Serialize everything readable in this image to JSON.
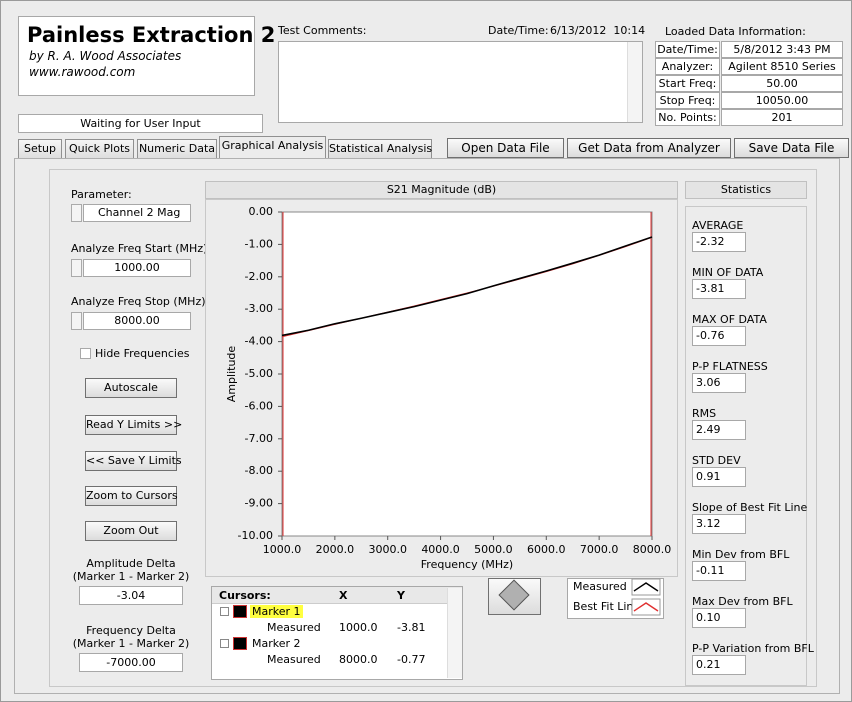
{
  "header": {
    "title": "Painless Extraction 2",
    "author": "by R. A. Wood Associates",
    "website": "www.rawood.com"
  },
  "status": "Waiting for User Input",
  "comments": {
    "label": "Test Comments:"
  },
  "datetime": {
    "label": "Date/Time:",
    "value": "6/13/2012  10:14"
  },
  "loaded_info": {
    "title": "Loaded Data Information:",
    "rows": [
      [
        "Date/Time:",
        "5/8/2012 3:43 PM"
      ],
      [
        "Analyzer:",
        "Agilent 8510 Series"
      ],
      [
        "Start Freq:",
        "50.00"
      ],
      [
        "Stop Freq:",
        "10050.00"
      ],
      [
        "No. Points:",
        "201"
      ]
    ]
  },
  "tabs": [
    "Setup",
    "Quick Plots",
    "Numeric Data",
    "Graphical Analysis",
    "Statistical Analysis"
  ],
  "buttons": [
    "Open Data File",
    "Get Data from Analyzer",
    "Save Data File"
  ],
  "controls": {
    "parameter": {
      "label": "Parameter:",
      "value": "Channel 2 Mag"
    },
    "freq_start": {
      "label": "Analyze Freq Start (MHz)",
      "value": "1000.00"
    },
    "freq_stop": {
      "label": "Analyze Freq Stop (MHz)",
      "value": "8000.00"
    },
    "hide_frequencies": "Hide Frequencies",
    "buttons": [
      "Autoscale",
      "Read Y Limits >>",
      "<< Save Y Limits",
      "Zoom to Cursors",
      "Zoom Out"
    ],
    "amplitude_delta": {
      "label": "Amplitude Delta",
      "sublabel": "(Marker 1 - Marker 2)",
      "value": "-3.04"
    },
    "frequency_delta": {
      "label": "Frequency Delta",
      "sublabel": "(Marker 1 - Marker 2)",
      "value": "-7000.00"
    }
  },
  "statistics": {
    "title": "Statistics",
    "items": [
      {
        "label": "AVERAGE",
        "value": "-2.32"
      },
      {
        "label": "MIN OF DATA",
        "value": "-3.81"
      },
      {
        "label": "MAX OF DATA",
        "value": "-0.76"
      },
      {
        "label": "P-P FLATNESS",
        "value": "3.06"
      },
      {
        "label": "RMS",
        "value": "2.49"
      },
      {
        "label": "STD DEV",
        "value": "0.91"
      },
      {
        "label": "Slope of Best Fit Line",
        "value": "3.12"
      },
      {
        "label": "Min Dev from BFL",
        "value": "-0.11"
      },
      {
        "label": "Max Dev from BFL",
        "value": "0.10"
      },
      {
        "label": "P-P Variation from BFL",
        "value": "0.21"
      }
    ]
  },
  "cursors": {
    "headers": [
      "Cursors:",
      "X",
      "Y"
    ],
    "rows": [
      {
        "name": "Marker 1",
        "trace": "Measured",
        "x": "1000.0",
        "y": "-3.81"
      },
      {
        "name": "Marker 2",
        "trace": "Measured",
        "x": "8000.0",
        "y": "-0.77"
      }
    ]
  },
  "chart_data": {
    "type": "line",
    "title": "S21 Magnitude (dB)",
    "x_label": "Frequency (MHz)",
    "y_label": "Amplitude",
    "x": [
      1000,
      1500,
      2000,
      2500,
      3000,
      3500,
      4000,
      4500,
      5000,
      5500,
      6000,
      6500,
      7000,
      7500,
      8000
    ],
    "series": [
      {
        "name": "Measured",
        "color": "#000000",
        "values": [
          -3.81,
          -3.65,
          -3.45,
          -3.28,
          -3.1,
          -2.92,
          -2.72,
          -2.52,
          -2.28,
          -2.05,
          -1.82,
          -1.58,
          -1.33,
          -1.05,
          -0.77
        ]
      },
      {
        "name": "Best Fit Line",
        "color": "#e03030",
        "values": [
          -3.85,
          -3.66,
          -3.47,
          -3.28,
          -3.09,
          -2.9,
          -2.7,
          -2.5,
          -2.29,
          -2.07,
          -1.84,
          -1.6,
          -1.34,
          -1.07,
          -0.78
        ]
      }
    ],
    "xlim": [
      1000,
      8000
    ],
    "xticks": [
      {
        "value": 1000,
        "label": "1000.0"
      },
      {
        "value": 2000,
        "label": "2000.0"
      },
      {
        "value": 3000,
        "label": "3000.0"
      },
      {
        "value": 4000,
        "label": "4000.0"
      },
      {
        "value": 5000,
        "label": "5000.0"
      },
      {
        "value": 6000,
        "label": "6000.0"
      },
      {
        "value": 7000,
        "label": "7000.0"
      },
      {
        "value": 8000,
        "label": "8000.0"
      }
    ],
    "ylim": [
      -10,
      0
    ],
    "yticks": [
      {
        "value": 0,
        "label": "0.00"
      },
      {
        "value": -1,
        "label": "-1.00"
      },
      {
        "value": -2,
        "label": "-2.00"
      },
      {
        "value": -3,
        "label": "-3.00"
      },
      {
        "value": -4,
        "label": "-4.00"
      },
      {
        "value": -5,
        "label": "-5.00"
      },
      {
        "value": -6,
        "label": "-6.00"
      },
      {
        "value": -7,
        "label": "-7.00"
      },
      {
        "value": -8,
        "label": "-8.00"
      },
      {
        "value": -9,
        "label": "-9.00"
      },
      {
        "value": -10,
        "label": "-10.00"
      }
    ],
    "grid": false
  }
}
